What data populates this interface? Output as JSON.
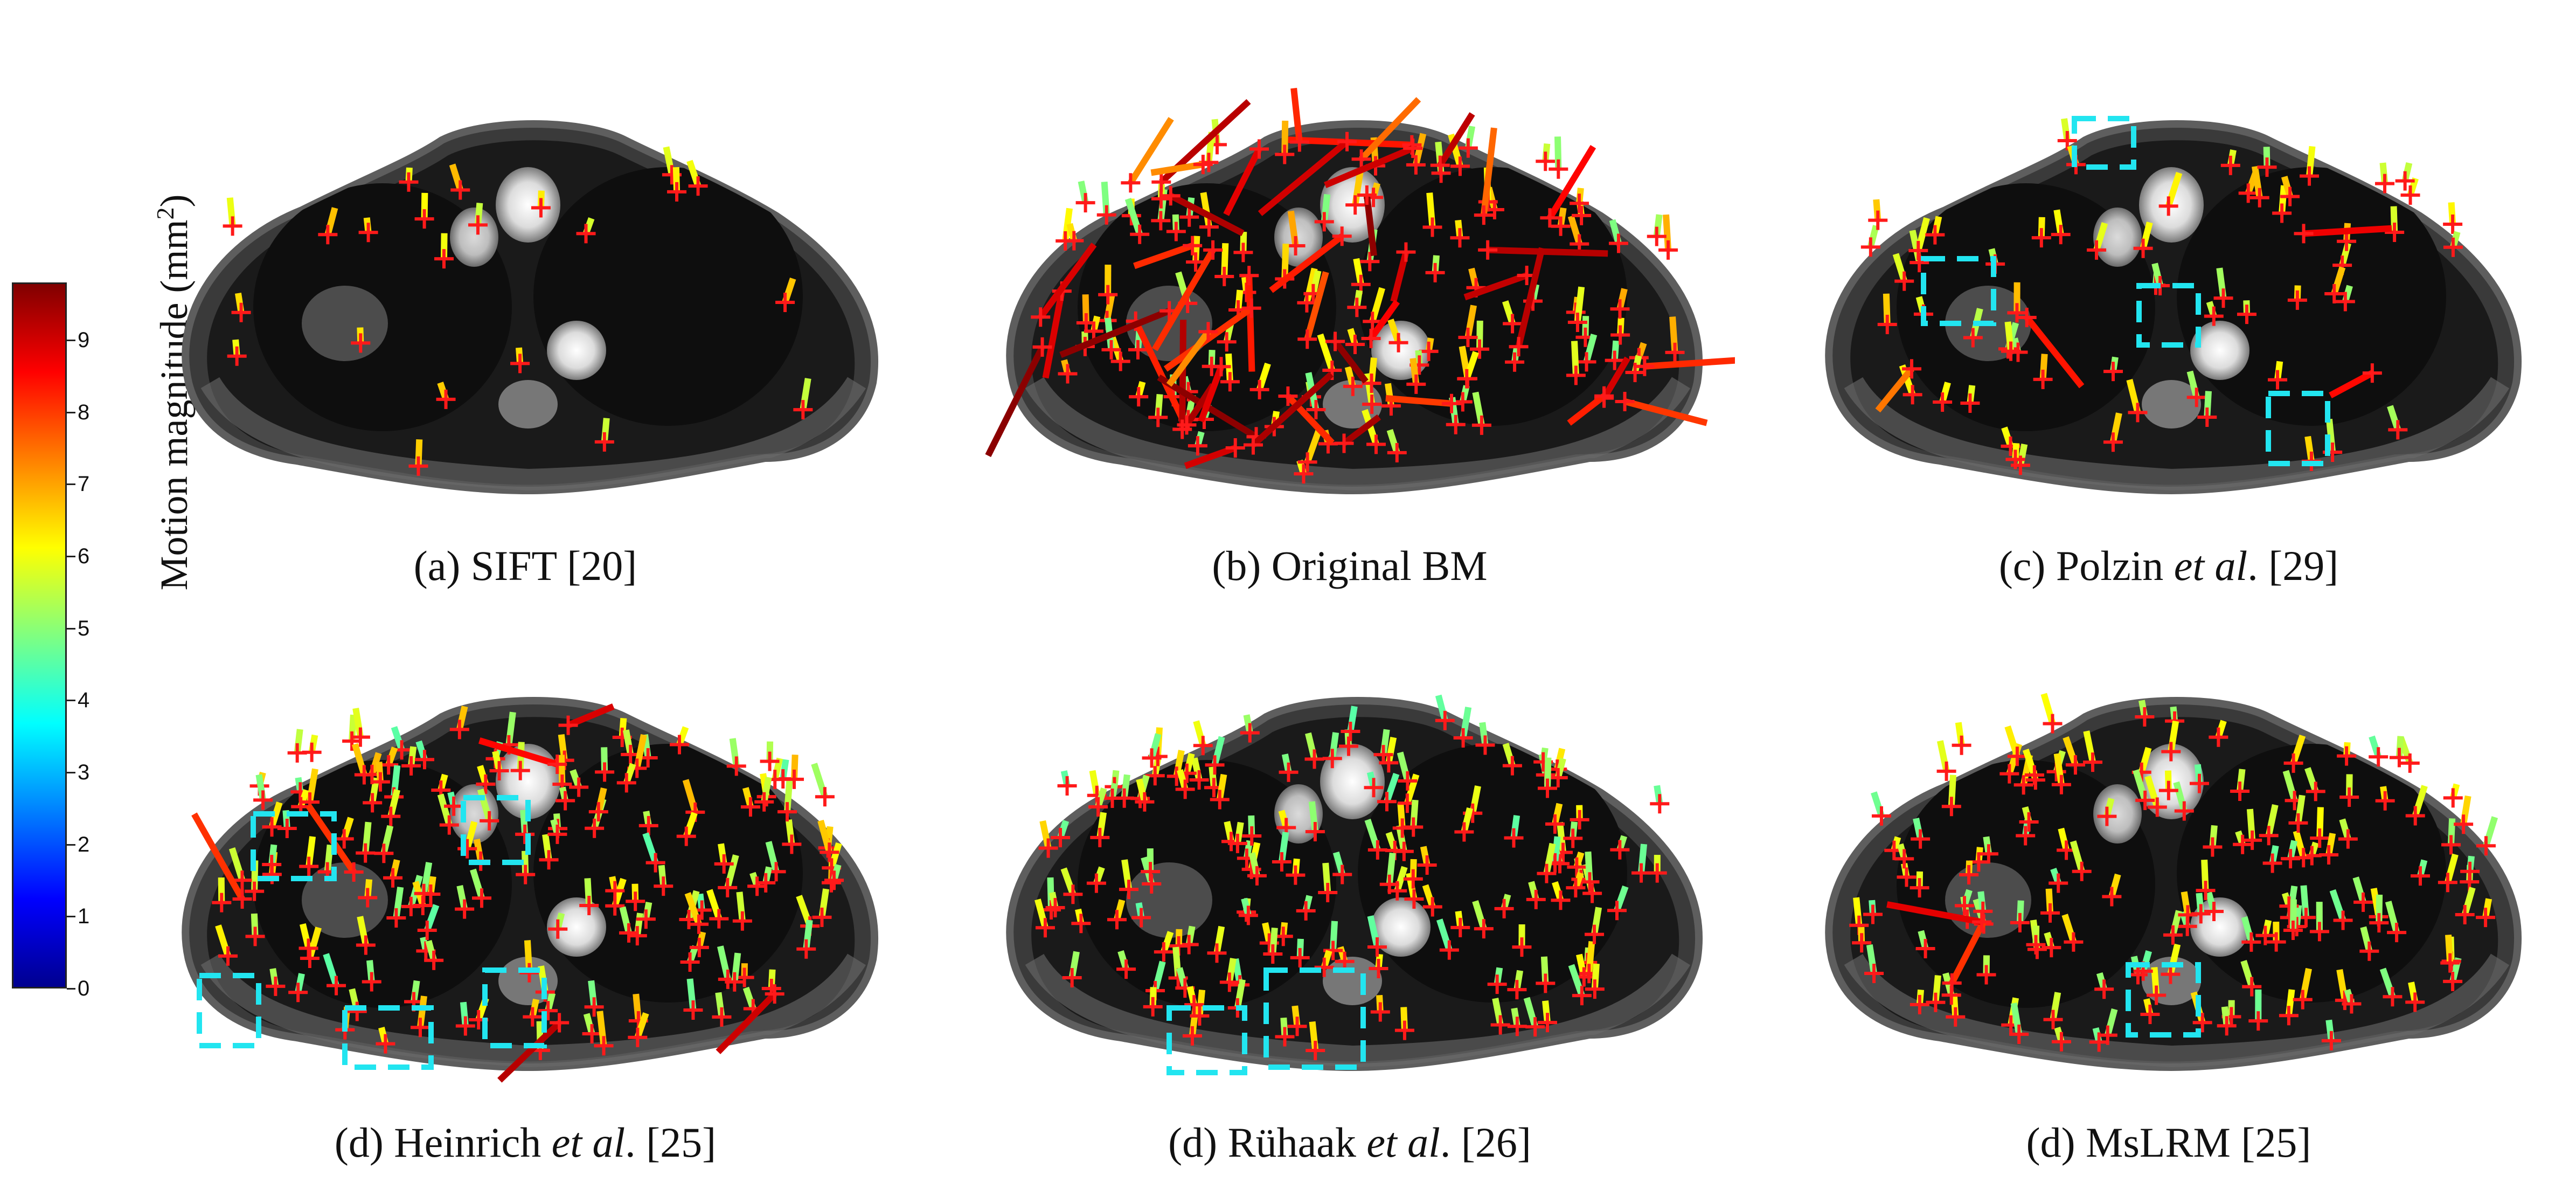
{
  "colorbar": {
    "label": "Motion magnitude (mm",
    "label_sup": "2",
    "label_close": ")",
    "ticks": [
      "0",
      "1",
      "2",
      "3",
      "4",
      "5",
      "6",
      "7",
      "8",
      "9"
    ],
    "range": [
      0,
      9.8
    ],
    "colormap": "jet"
  },
  "panels": [
    {
      "caption_prefix": "(a) SIFT [20]",
      "caption_italic": "",
      "caption_suffix": "",
      "marker_density": "sparse"
    },
    {
      "caption_prefix": "(b) Original BM",
      "caption_italic": "",
      "caption_suffix": "",
      "marker_density": "dense-outliers"
    },
    {
      "caption_prefix": "(c) Polzin ",
      "caption_italic": "et al",
      "caption_suffix": ". [29]",
      "marker_density": "medium"
    },
    {
      "caption_prefix": "(d) Heinrich ",
      "caption_italic": "et al",
      "caption_suffix": ". [25]",
      "marker_density": "dense"
    },
    {
      "caption_prefix": "(d) Rühaak ",
      "caption_italic": "et al",
      "caption_suffix": ". [26]",
      "marker_density": "dense"
    },
    {
      "caption_prefix": "(d) MsLRM [25]",
      "caption_italic": "",
      "caption_suffix": "",
      "marker_density": "dense"
    }
  ],
  "colors": {
    "marker": "#ff1a1a",
    "highlight_box": "#22e5f0",
    "anatomy_background": "#1a1a1a"
  }
}
